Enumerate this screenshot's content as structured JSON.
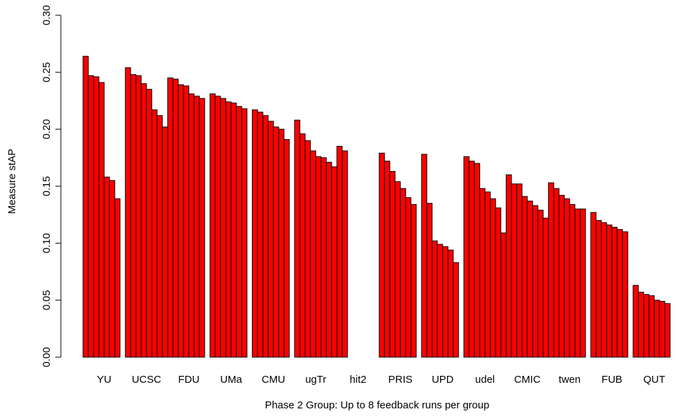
{
  "chart_data": {
    "type": "bar",
    "title": "",
    "xlabel": "Phase 2 Group: Up to 8 feedback runs per group",
    "ylabel": "Measure  stAP",
    "ylim": [
      0,
      0.3
    ],
    "yticks": [
      "0.00",
      "0.05",
      "0.10",
      "0.15",
      "0.20",
      "0.25",
      "0.30"
    ],
    "bar_color": "#ff0000",
    "bar_stroke": "#000000",
    "grid": false,
    "legend": "none",
    "groups": [
      {
        "name": "YU",
        "values": [
          0.264,
          0.247,
          0.246,
          0.241,
          0.158,
          0.155,
          0.139
        ]
      },
      {
        "name": "UCSC",
        "values": [
          0.254,
          0.248,
          0.247,
          0.24,
          0.235,
          0.217,
          0.212,
          0.202
        ]
      },
      {
        "name": "FDU",
        "values": [
          0.245,
          0.244,
          0.239,
          0.238,
          0.231,
          0.229,
          0.227
        ]
      },
      {
        "name": "UMa",
        "values": [
          0.231,
          0.229,
          0.227,
          0.224,
          0.223,
          0.22,
          0.218
        ]
      },
      {
        "name": "CMU",
        "values": [
          0.217,
          0.215,
          0.212,
          0.207,
          0.202,
          0.2,
          0.191
        ]
      },
      {
        "name": "ugTr",
        "values": [
          0.208,
          0.196,
          0.19,
          0.181,
          0.176,
          0.175,
          0.171,
          0.167
        ]
      },
      {
        "name": "hit2",
        "values": [
          0.185,
          0.181
        ]
      },
      {
        "name": "PRIS",
        "values": [
          0.179,
          0.172,
          0.163,
          0.154,
          0.148,
          0.14,
          0.134
        ]
      },
      {
        "name": "UPD",
        "values": [
          0.178,
          0.135,
          0.102,
          0.099,
          0.097,
          0.094,
          0.083
        ]
      },
      {
        "name": "udel",
        "values": [
          0.176,
          0.172,
          0.17,
          0.148,
          0.145,
          0.139,
          0.131,
          0.109
        ]
      },
      {
        "name": "CMIC",
        "values": [
          0.16,
          0.152,
          0.152,
          0.141,
          0.137,
          0.133,
          0.129,
          0.122
        ]
      },
      {
        "name": "twen",
        "values": [
          0.153,
          0.148,
          0.142,
          0.139,
          0.134,
          0.13,
          0.13
        ]
      },
      {
        "name": "FUB",
        "values": [
          0.127,
          0.12,
          0.118,
          0.116,
          0.114,
          0.112,
          0.11
        ]
      },
      {
        "name": "QUT",
        "values": [
          0.063,
          0.057,
          0.055,
          0.054,
          0.05,
          0.049,
          0.047
        ]
      }
    ]
  }
}
